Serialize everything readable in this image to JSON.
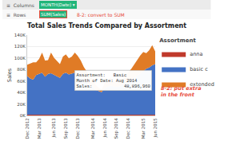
{
  "chart_data": {
    "type": "area",
    "stacked": true,
    "title": "Total Sales Trends Compared by Assortment",
    "y_label": "Sales",
    "legend_title": "Assortment",
    "header_rows": [
      {
        "text": "≡  Columns",
        "pill": "MONTH(Date) ▾"
      },
      {
        "text": "≡  Rows",
        "pill": "SUM(Sales)",
        "note": "8-2: convert to SUM",
        "color": "#e74c3c"
      }
    ],
    "categories": [
      "Dec 2012",
      null,
      null,
      null,
      "Mar 2013",
      null,
      null,
      null,
      null,
      "Jun 2013",
      null,
      null,
      null,
      "Sep 2013",
      null,
      null,
      null,
      "Dec 2013",
      null,
      null,
      null,
      null,
      "Mar 2014",
      null,
      null,
      null,
      "Jun 2014",
      null,
      null,
      null,
      "Sep 2014",
      null,
      null,
      null,
      "Dec 2014",
      null,
      null,
      null,
      null,
      "Mar 2015",
      null,
      null,
      null,
      "Jun 2015"
    ],
    "series": [
      {
        "name": "anna",
        "color": "#c0392b",
        "values": [
          1.5,
          1.5,
          1.5,
          1.5,
          1.5,
          1.5,
          1.5,
          1.5,
          1.5,
          1.5,
          1.5,
          1.5,
          1.5,
          1.5,
          1.5,
          1.5,
          1.5,
          1.5,
          1.5,
          1.5,
          1.5,
          1.5,
          1.5,
          1.5,
          1.5,
          1.5,
          1.5,
          1.5,
          1.5,
          1.5,
          1.5,
          1.5,
          1.5,
          1.5,
          1.5,
          1.5,
          1.5,
          1.5,
          1.5,
          1.5,
          1.5,
          1.5,
          1.5,
          1.5
        ]
      },
      {
        "name": "basic c",
        "color": "#4472c4",
        "values": [
          67,
          63,
          61,
          69,
          71,
          73,
          66,
          71,
          72,
          69,
          66,
          64,
          71,
          73,
          70,
          71,
          73,
          69,
          66,
          61,
          56,
          51,
          49,
          43,
          41,
          39,
          46,
          49,
          51,
          49,
          48,
          49,
          52,
          56,
          58,
          60,
          64,
          69,
          73,
          76,
          80,
          82,
          86,
          88
        ]
      },
      {
        "name": "extended",
        "color": "#e07b26",
        "values": [
          20,
          26,
          30,
          22,
          26,
          35,
          28,
          24,
          36,
          30,
          27,
          24,
          30,
          32,
          28,
          30,
          35,
          33,
          28,
          22,
          19,
          16,
          13,
          9,
          6,
          5,
          9,
          11,
          14,
          9,
          7,
          9,
          11,
          13,
          16,
          20,
          24,
          27,
          30,
          33,
          27,
          30,
          35,
          22
        ]
      }
    ],
    "ylim": [
      0,
      140
    ],
    "yticks": [
      {
        "value": 0,
        "label": "0K"
      },
      {
        "value": 20,
        "label": "20K"
      },
      {
        "value": 40,
        "label": "40K"
      },
      {
        "value": 60,
        "label": "60K"
      },
      {
        "value": 80,
        "label": "80K"
      },
      {
        "value": 100,
        "label": "100K"
      },
      {
        "value": 120,
        "label": "120K"
      },
      {
        "value": 140,
        "label": "140K"
      }
    ],
    "grid": true,
    "annotations": [
      {
        "text": "Assortment:   Basic\nMonth of Date: Aug 2014\nSales:            48,896,960",
        "x": 29,
        "y": 43
      },
      {
        "text": "8-2: put extra\nin the front",
        "color": "#e74c3c"
      }
    ]
  }
}
